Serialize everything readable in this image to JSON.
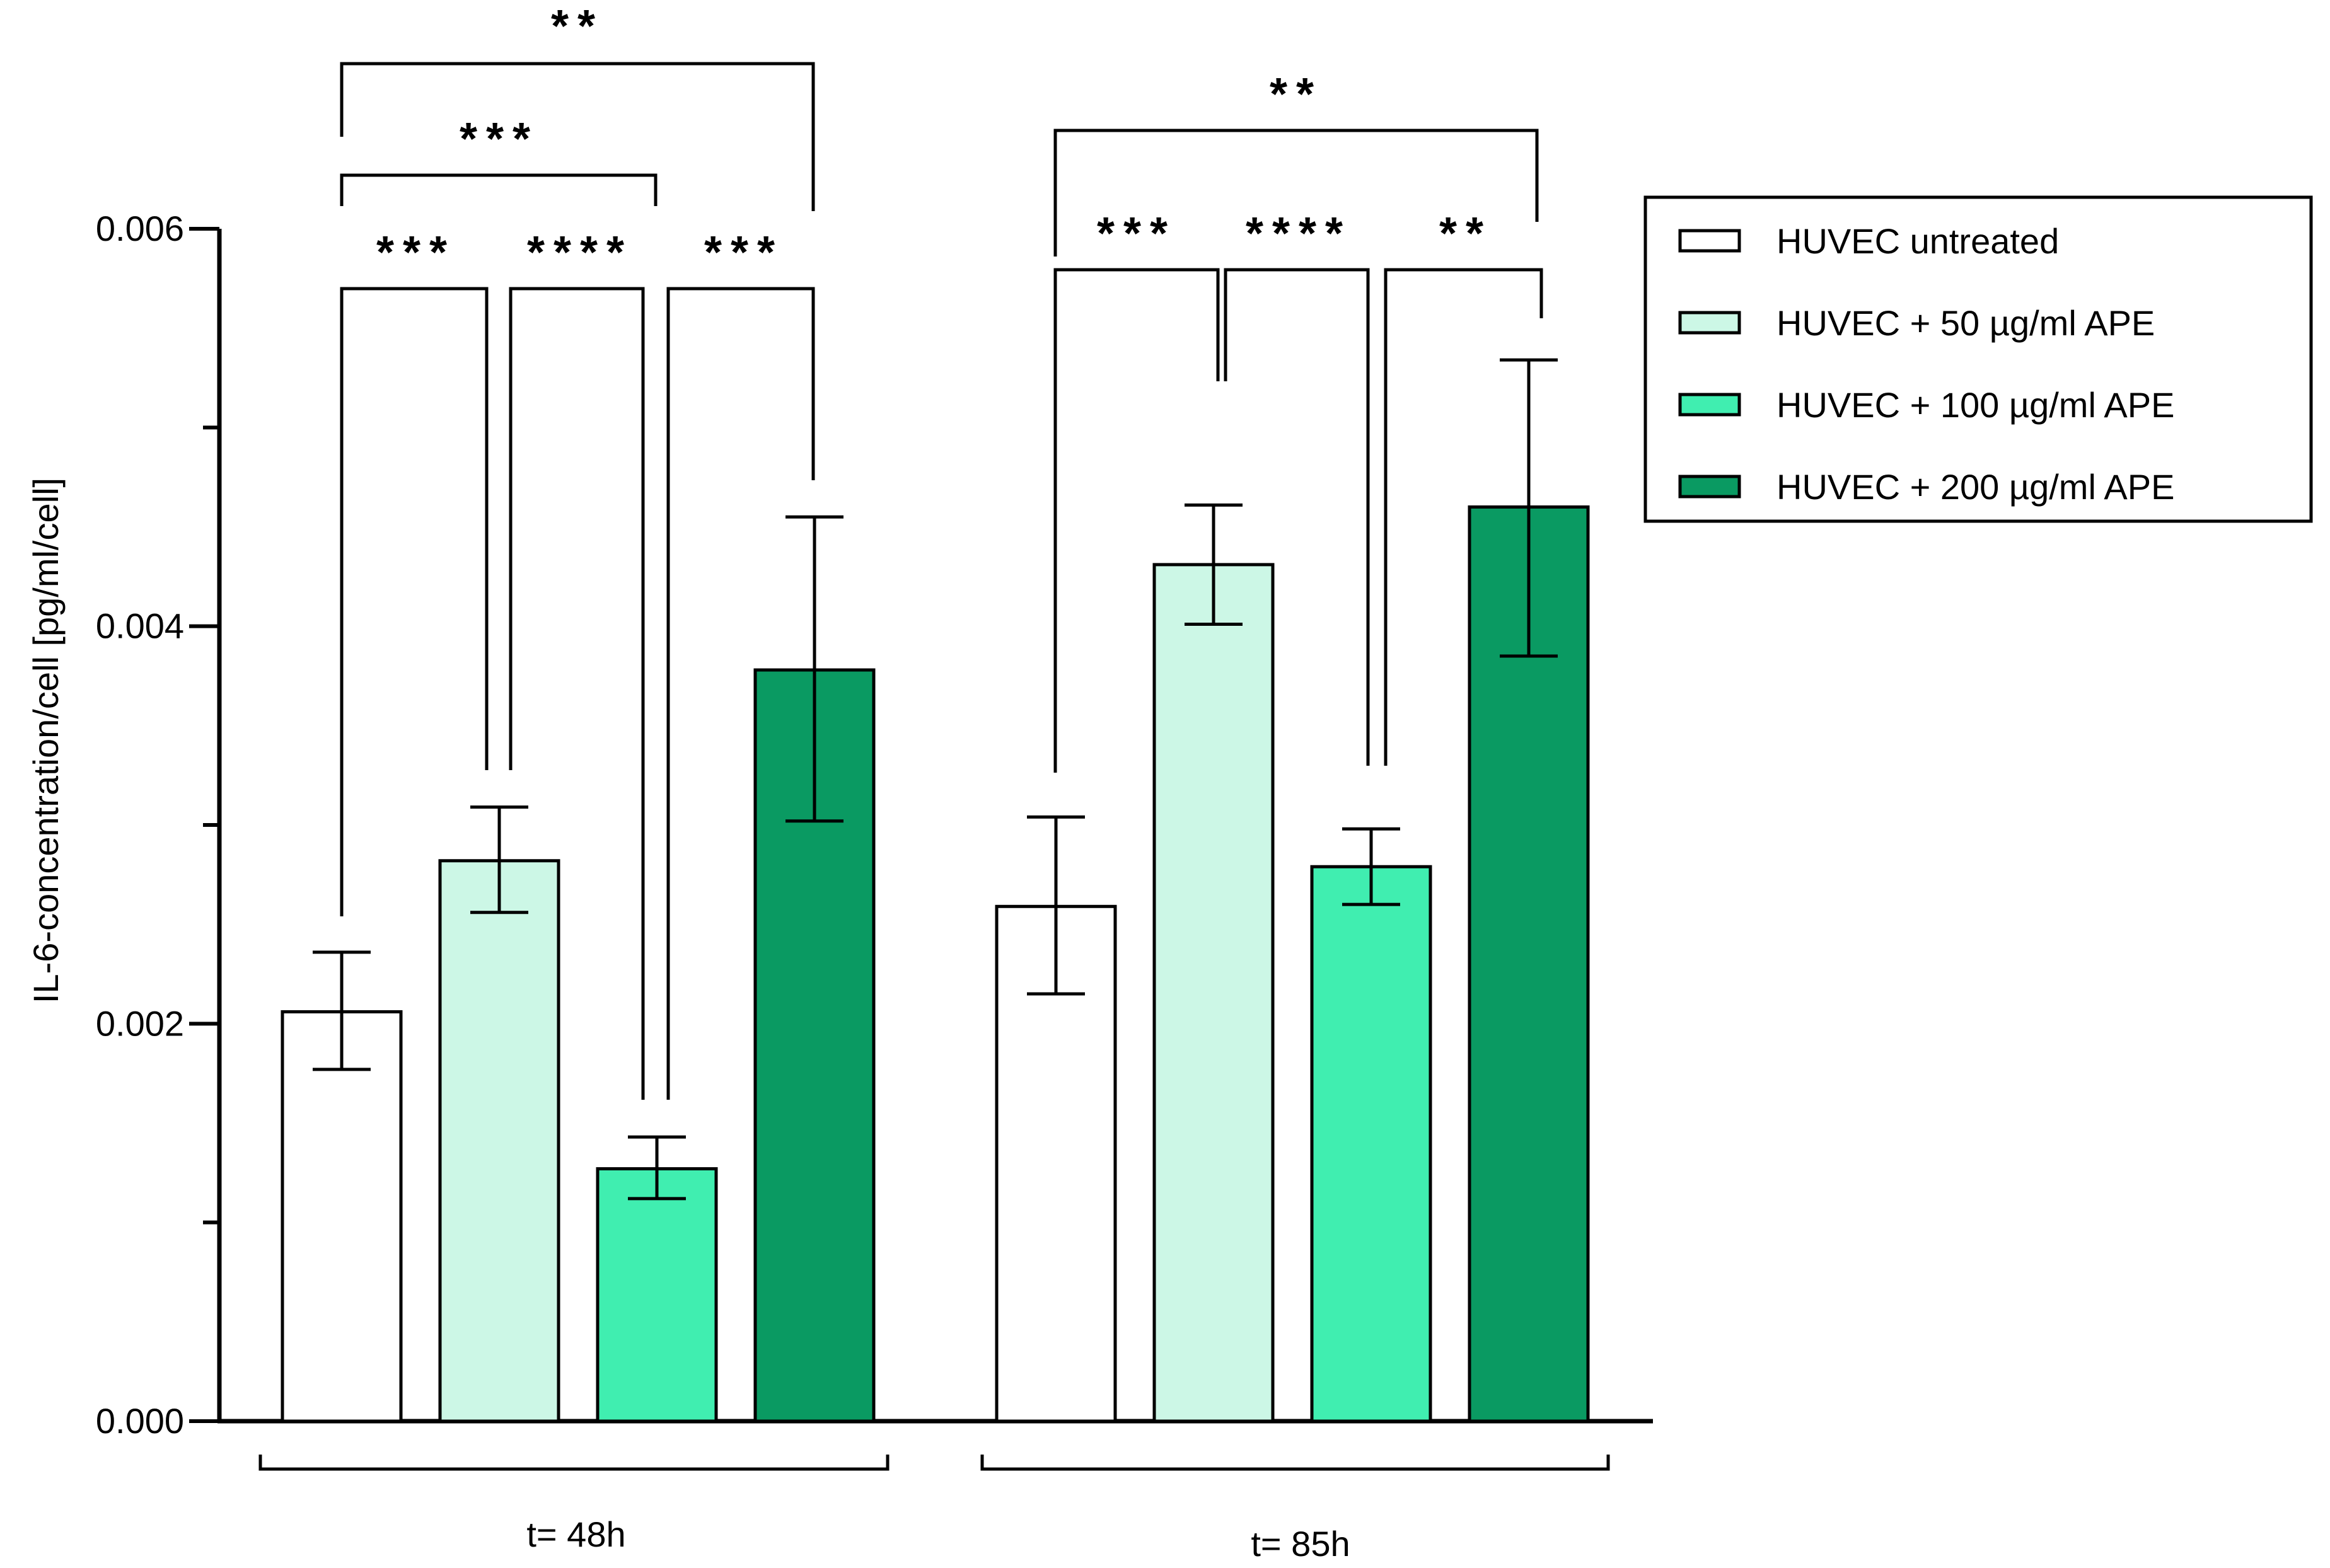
{
  "chart_data": {
    "type": "bar",
    "ylabel": "IL-6-concentration/cell [pg/ml/cell]",
    "xlabel": "",
    "ylim": [
      0,
      0.006
    ],
    "yticks": [
      {
        "value": 0.0,
        "label": "0.000"
      },
      {
        "value": 0.002,
        "label": "0.002"
      },
      {
        "value": 0.004,
        "label": "0.004"
      },
      {
        "value": 0.006,
        "label": "0.006"
      }
    ],
    "y_minor_ticks": [
      0.001,
      0.003,
      0.005
    ],
    "groups": [
      "t= 48h",
      "t= 85h"
    ],
    "series": [
      {
        "name": "HUVEC untreated",
        "color": "#ffffff",
        "values": [
          0.00206,
          0.00259
        ],
        "error_low": [
          0.00177,
          0.00215
        ],
        "error_high": [
          0.00236,
          0.00304
        ]
      },
      {
        "name": "HUVEC + 50 µg/ml APE",
        "color": "#ccf7e6",
        "values": [
          0.00282,
          0.00431
        ],
        "error_low": [
          0.00256,
          0.00401
        ],
        "error_high": [
          0.00309,
          0.00461
        ]
      },
      {
        "name": "HUVEC + 100 µg/ml APE",
        "color": "#40eeb0",
        "values": [
          0.00127,
          0.00279
        ],
        "error_low": [
          0.00112,
          0.0026
        ],
        "error_high": [
          0.00143,
          0.00298
        ]
      },
      {
        "name": "HUVEC + 200 µg/ml APE",
        "color": "#0a9a62",
        "values": [
          0.00378,
          0.0046
        ],
        "error_low": [
          0.00302,
          0.00385
        ],
        "error_high": [
          0.00455,
          0.00534
        ]
      }
    ],
    "significance": [
      {
        "group": 0,
        "from": 0,
        "to": 1,
        "label": "***"
      },
      {
        "group": 0,
        "from": 1,
        "to": 2,
        "label": "****"
      },
      {
        "group": 0,
        "from": 2,
        "to": 3,
        "label": "***"
      },
      {
        "group": 0,
        "from": 0,
        "to": 2,
        "label": "***"
      },
      {
        "group": 0,
        "from": 0,
        "to": 3,
        "label": "**"
      },
      {
        "group": 1,
        "from": 0,
        "to": 1,
        "label": "***"
      },
      {
        "group": 1,
        "from": 1,
        "to": 2,
        "label": "****"
      },
      {
        "group": 1,
        "from": 2,
        "to": 3,
        "label": "**"
      },
      {
        "group": 1,
        "from": 0,
        "to": 3,
        "label": "**"
      }
    ],
    "legend_position": "right"
  }
}
